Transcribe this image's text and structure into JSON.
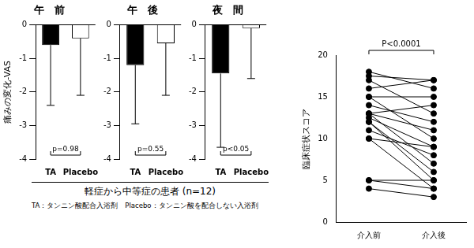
{
  "chart_data": [
    {
      "type": "bar",
      "title": "午　前",
      "y_label": "痛みの変化-VAS",
      "categories": [
        "TA",
        "Placebo"
      ],
      "values": [
        -0.6,
        -0.4
      ],
      "error_lower": [
        1.8,
        1.7
      ],
      "colors": [
        "#000000",
        "#ffffff"
      ],
      "ylim": [
        -4,
        0
      ],
      "yticks": [
        -4,
        -3,
        -2,
        -1,
        0
      ],
      "annotation": "p=0.98"
    },
    {
      "type": "bar",
      "title": "午　後",
      "categories": [
        "TA",
        "Placebo"
      ],
      "values": [
        -1.2,
        -0.55
      ],
      "error_lower": [
        1.75,
        1.55
      ],
      "colors": [
        "#000000",
        "#ffffff"
      ],
      "ylim": [
        -4,
        0
      ],
      "yticks": [
        -4,
        -3,
        -2,
        -1,
        0
      ],
      "annotation": "p=0.55"
    },
    {
      "type": "bar",
      "title": "夜　間",
      "categories": [
        "TA",
        "Placebo"
      ],
      "values": [
        -1.45,
        -0.1
      ],
      "error_lower": [
        2.2,
        1.5
      ],
      "colors": [
        "#000000",
        "#ffffff"
      ],
      "ylim": [
        -4,
        0
      ],
      "yticks": [
        -4,
        -3,
        -2,
        -1,
        0
      ],
      "annotation": "p<0.05"
    },
    {
      "type": "line",
      "y_label": "臨床症状スコア",
      "categories": [
        "介入前",
        "介入後"
      ],
      "color": "#000000",
      "marker": "circle",
      "ylim": [
        0,
        20
      ],
      "yticks": [
        0,
        5,
        10,
        15,
        20
      ],
      "annotation": "P<0.0001",
      "series": [
        {
          "values": [
            18,
            16
          ]
        },
        {
          "values": [
            17.5,
            17
          ]
        },
        {
          "values": [
            17,
            13
          ]
        },
        {
          "values": [
            16,
            17
          ]
        },
        {
          "values": [
            15,
            15
          ]
        },
        {
          "values": [
            15,
            10
          ]
        },
        {
          "values": [
            14,
            12
          ]
        },
        {
          "values": [
            13,
            14
          ]
        },
        {
          "values": [
            13,
            7
          ]
        },
        {
          "values": [
            13,
            11
          ]
        },
        {
          "values": [
            12.5,
            9
          ]
        },
        {
          "values": [
            12,
            6
          ]
        },
        {
          "values": [
            12,
            5
          ]
        },
        {
          "values": [
            11,
            8
          ]
        },
        {
          "values": [
            10,
            9
          ]
        },
        {
          "values": [
            10,
            4
          ]
        },
        {
          "values": [
            5,
            4
          ]
        },
        {
          "values": [
            5,
            5
          ]
        },
        {
          "values": [
            4,
            3
          ]
        }
      ]
    }
  ],
  "group_label": "軽症から中等症の患者 (n=12)",
  "footnote": "TA：タンニン酸配合入浴剤　Placebo：タンニン酸を配合しない入浴剤"
}
